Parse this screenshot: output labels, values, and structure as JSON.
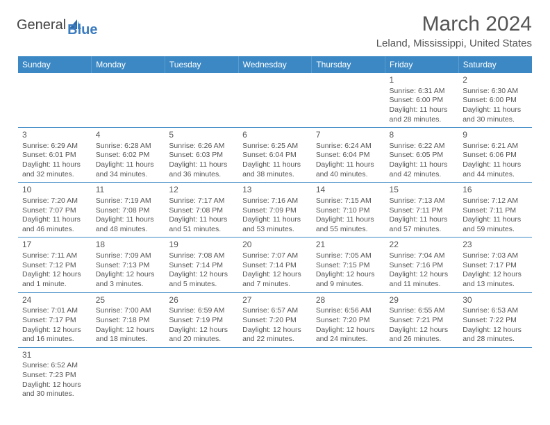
{
  "logo": {
    "prefix": "General",
    "suffix": "Blue"
  },
  "title": "March 2024",
  "location": "Leland, Mississippi, United States",
  "colors": {
    "header_bg": "#3b88c4",
    "header_text": "#ffffff",
    "body_text": "#555555",
    "rule": "#3b88c4",
    "logo_blue": "#3b7bbf"
  },
  "days_of_week": [
    "Sunday",
    "Monday",
    "Tuesday",
    "Wednesday",
    "Thursday",
    "Friday",
    "Saturday"
  ],
  "weeks": [
    [
      null,
      null,
      null,
      null,
      null,
      {
        "n": "1",
        "l1": "Sunrise: 6:31 AM",
        "l2": "Sunset: 6:00 PM",
        "l3": "Daylight: 11 hours",
        "l4": "and 28 minutes."
      },
      {
        "n": "2",
        "l1": "Sunrise: 6:30 AM",
        "l2": "Sunset: 6:00 PM",
        "l3": "Daylight: 11 hours",
        "l4": "and 30 minutes."
      }
    ],
    [
      {
        "n": "3",
        "l1": "Sunrise: 6:29 AM",
        "l2": "Sunset: 6:01 PM",
        "l3": "Daylight: 11 hours",
        "l4": "and 32 minutes."
      },
      {
        "n": "4",
        "l1": "Sunrise: 6:28 AM",
        "l2": "Sunset: 6:02 PM",
        "l3": "Daylight: 11 hours",
        "l4": "and 34 minutes."
      },
      {
        "n": "5",
        "l1": "Sunrise: 6:26 AM",
        "l2": "Sunset: 6:03 PM",
        "l3": "Daylight: 11 hours",
        "l4": "and 36 minutes."
      },
      {
        "n": "6",
        "l1": "Sunrise: 6:25 AM",
        "l2": "Sunset: 6:04 PM",
        "l3": "Daylight: 11 hours",
        "l4": "and 38 minutes."
      },
      {
        "n": "7",
        "l1": "Sunrise: 6:24 AM",
        "l2": "Sunset: 6:04 PM",
        "l3": "Daylight: 11 hours",
        "l4": "and 40 minutes."
      },
      {
        "n": "8",
        "l1": "Sunrise: 6:22 AM",
        "l2": "Sunset: 6:05 PM",
        "l3": "Daylight: 11 hours",
        "l4": "and 42 minutes."
      },
      {
        "n": "9",
        "l1": "Sunrise: 6:21 AM",
        "l2": "Sunset: 6:06 PM",
        "l3": "Daylight: 11 hours",
        "l4": "and 44 minutes."
      }
    ],
    [
      {
        "n": "10",
        "l1": "Sunrise: 7:20 AM",
        "l2": "Sunset: 7:07 PM",
        "l3": "Daylight: 11 hours",
        "l4": "and 46 minutes."
      },
      {
        "n": "11",
        "l1": "Sunrise: 7:19 AM",
        "l2": "Sunset: 7:08 PM",
        "l3": "Daylight: 11 hours",
        "l4": "and 48 minutes."
      },
      {
        "n": "12",
        "l1": "Sunrise: 7:17 AM",
        "l2": "Sunset: 7:08 PM",
        "l3": "Daylight: 11 hours",
        "l4": "and 51 minutes."
      },
      {
        "n": "13",
        "l1": "Sunrise: 7:16 AM",
        "l2": "Sunset: 7:09 PM",
        "l3": "Daylight: 11 hours",
        "l4": "and 53 minutes."
      },
      {
        "n": "14",
        "l1": "Sunrise: 7:15 AM",
        "l2": "Sunset: 7:10 PM",
        "l3": "Daylight: 11 hours",
        "l4": "and 55 minutes."
      },
      {
        "n": "15",
        "l1": "Sunrise: 7:13 AM",
        "l2": "Sunset: 7:11 PM",
        "l3": "Daylight: 11 hours",
        "l4": "and 57 minutes."
      },
      {
        "n": "16",
        "l1": "Sunrise: 7:12 AM",
        "l2": "Sunset: 7:11 PM",
        "l3": "Daylight: 11 hours",
        "l4": "and 59 minutes."
      }
    ],
    [
      {
        "n": "17",
        "l1": "Sunrise: 7:11 AM",
        "l2": "Sunset: 7:12 PM",
        "l3": "Daylight: 12 hours",
        "l4": "and 1 minute."
      },
      {
        "n": "18",
        "l1": "Sunrise: 7:09 AM",
        "l2": "Sunset: 7:13 PM",
        "l3": "Daylight: 12 hours",
        "l4": "and 3 minutes."
      },
      {
        "n": "19",
        "l1": "Sunrise: 7:08 AM",
        "l2": "Sunset: 7:14 PM",
        "l3": "Daylight: 12 hours",
        "l4": "and 5 minutes."
      },
      {
        "n": "20",
        "l1": "Sunrise: 7:07 AM",
        "l2": "Sunset: 7:14 PM",
        "l3": "Daylight: 12 hours",
        "l4": "and 7 minutes."
      },
      {
        "n": "21",
        "l1": "Sunrise: 7:05 AM",
        "l2": "Sunset: 7:15 PM",
        "l3": "Daylight: 12 hours",
        "l4": "and 9 minutes."
      },
      {
        "n": "22",
        "l1": "Sunrise: 7:04 AM",
        "l2": "Sunset: 7:16 PM",
        "l3": "Daylight: 12 hours",
        "l4": "and 11 minutes."
      },
      {
        "n": "23",
        "l1": "Sunrise: 7:03 AM",
        "l2": "Sunset: 7:17 PM",
        "l3": "Daylight: 12 hours",
        "l4": "and 13 minutes."
      }
    ],
    [
      {
        "n": "24",
        "l1": "Sunrise: 7:01 AM",
        "l2": "Sunset: 7:17 PM",
        "l3": "Daylight: 12 hours",
        "l4": "and 16 minutes."
      },
      {
        "n": "25",
        "l1": "Sunrise: 7:00 AM",
        "l2": "Sunset: 7:18 PM",
        "l3": "Daylight: 12 hours",
        "l4": "and 18 minutes."
      },
      {
        "n": "26",
        "l1": "Sunrise: 6:59 AM",
        "l2": "Sunset: 7:19 PM",
        "l3": "Daylight: 12 hours",
        "l4": "and 20 minutes."
      },
      {
        "n": "27",
        "l1": "Sunrise: 6:57 AM",
        "l2": "Sunset: 7:20 PM",
        "l3": "Daylight: 12 hours",
        "l4": "and 22 minutes."
      },
      {
        "n": "28",
        "l1": "Sunrise: 6:56 AM",
        "l2": "Sunset: 7:20 PM",
        "l3": "Daylight: 12 hours",
        "l4": "and 24 minutes."
      },
      {
        "n": "29",
        "l1": "Sunrise: 6:55 AM",
        "l2": "Sunset: 7:21 PM",
        "l3": "Daylight: 12 hours",
        "l4": "and 26 minutes."
      },
      {
        "n": "30",
        "l1": "Sunrise: 6:53 AM",
        "l2": "Sunset: 7:22 PM",
        "l3": "Daylight: 12 hours",
        "l4": "and 28 minutes."
      }
    ],
    [
      {
        "n": "31",
        "l1": "Sunrise: 6:52 AM",
        "l2": "Sunset: 7:23 PM",
        "l3": "Daylight: 12 hours",
        "l4": "and 30 minutes."
      },
      null,
      null,
      null,
      null,
      null,
      null
    ]
  ]
}
